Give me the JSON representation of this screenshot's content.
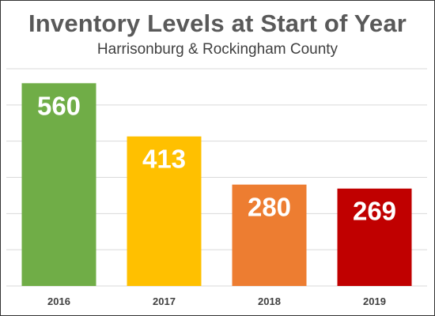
{
  "chart_data": {
    "type": "bar",
    "title": "Inventory Levels at Start of Year",
    "subtitle": "Harrisonburg & Rockingham County",
    "categories": [
      "2016",
      "2017",
      "2018",
      "2019"
    ],
    "values": [
      560,
      413,
      280,
      269
    ],
    "colors": [
      "#70ad47",
      "#ffc000",
      "#ed7d31",
      "#c00000"
    ],
    "data_labels": [
      "560",
      "413",
      "280",
      "269"
    ],
    "ylim": [
      0,
      600
    ],
    "grid": true,
    "legend": "none"
  }
}
